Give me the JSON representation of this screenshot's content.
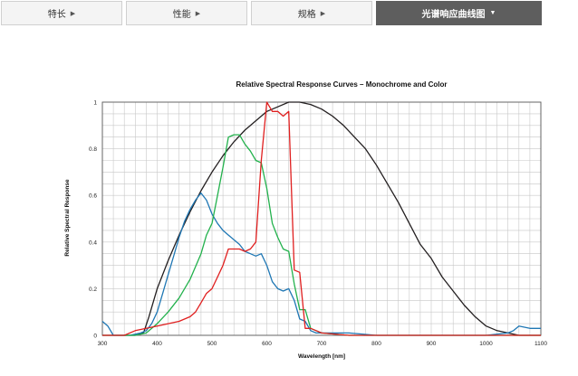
{
  "tabs": [
    {
      "label": "特长",
      "arrow": "▶",
      "active": false
    },
    {
      "label": "性能",
      "arrow": "▶",
      "active": false
    },
    {
      "label": "规格",
      "arrow": "▶",
      "active": false
    },
    {
      "label": "光谱响应曲线图",
      "arrow": "▼",
      "active": true
    }
  ],
  "chart_data": {
    "type": "line",
    "title": "Relative Spectral Response Curves – Monochrome and Color",
    "xlabel": "Wavelength [nm]",
    "ylabel": "Relative Spectral Response",
    "xlim": [
      300,
      1100
    ],
    "ylim": [
      0,
      1
    ],
    "xticks": [
      300,
      400,
      500,
      600,
      700,
      800,
      900,
      1000,
      1100
    ],
    "yticks": [
      0,
      0.2,
      0.4,
      0.6,
      0.8,
      1
    ],
    "ytick_labels": [
      "0",
      "0.2",
      "0.4",
      "0.6",
      "0.8",
      "1"
    ],
    "grid": true,
    "series": [
      {
        "color": "#231f20",
        "x": [
          300,
          320,
          340,
          360,
          375,
          385,
          400,
          420,
          440,
          460,
          480,
          500,
          520,
          540,
          560,
          580,
          600,
          620,
          640,
          660,
          680,
          700,
          720,
          740,
          760,
          780,
          800,
          820,
          840,
          860,
          880,
          900,
          920,
          940,
          960,
          980,
          1000,
          1020,
          1040,
          1060,
          1080,
          1100
        ],
        "y": [
          0,
          0,
          0,
          0,
          0.01,
          0.08,
          0.2,
          0.32,
          0.43,
          0.53,
          0.62,
          0.7,
          0.77,
          0.83,
          0.88,
          0.92,
          0.96,
          0.98,
          1,
          1,
          0.99,
          0.97,
          0.94,
          0.9,
          0.85,
          0.8,
          0.73,
          0.65,
          0.57,
          0.48,
          0.39,
          0.33,
          0.25,
          0.19,
          0.13,
          0.08,
          0.04,
          0.02,
          0.01,
          0,
          0,
          0
        ]
      },
      {
        "color": "#1f77b4",
        "x": [
          300,
          310,
          320,
          330,
          350,
          370,
          380,
          390,
          400,
          410,
          420,
          430,
          440,
          450,
          460,
          470,
          480,
          490,
          500,
          510,
          520,
          530,
          540,
          550,
          560,
          570,
          580,
          590,
          600,
          610,
          620,
          630,
          640,
          650,
          660,
          670,
          680,
          690,
          700,
          750,
          800,
          850,
          900,
          950,
          1000,
          1040,
          1050,
          1060,
          1080,
          1100
        ],
        "y": [
          0.06,
          0.04,
          0,
          0,
          0,
          0.01,
          0.02,
          0.05,
          0.1,
          0.18,
          0.26,
          0.34,
          0.42,
          0.49,
          0.54,
          0.58,
          0.61,
          0.58,
          0.52,
          0.48,
          0.45,
          0.43,
          0.41,
          0.39,
          0.36,
          0.35,
          0.34,
          0.35,
          0.3,
          0.23,
          0.2,
          0.19,
          0.2,
          0.15,
          0.07,
          0.06,
          0.02,
          0.01,
          0.01,
          0.01,
          0,
          0,
          0,
          0,
          0,
          0.01,
          0.02,
          0.04,
          0.03,
          0.03
        ]
      },
      {
        "color": "#22b14c",
        "x": [
          300,
          340,
          360,
          380,
          400,
          420,
          440,
          460,
          480,
          490,
          500,
          510,
          520,
          530,
          540,
          550,
          560,
          570,
          580,
          590,
          600,
          610,
          620,
          630,
          640,
          650,
          660,
          670,
          680,
          690,
          700,
          750,
          800,
          900,
          1000,
          1100
        ],
        "y": [
          0,
          0,
          0,
          0.01,
          0.05,
          0.1,
          0.16,
          0.24,
          0.35,
          0.43,
          0.48,
          0.6,
          0.72,
          0.85,
          0.86,
          0.86,
          0.82,
          0.79,
          0.75,
          0.74,
          0.63,
          0.48,
          0.42,
          0.37,
          0.36,
          0.22,
          0.11,
          0.11,
          0.03,
          0.02,
          0.01,
          0,
          0,
          0,
          0,
          0
        ]
      },
      {
        "color": "#e01f1f",
        "x": [
          300,
          340,
          360,
          380,
          400,
          420,
          440,
          460,
          470,
          480,
          490,
          500,
          510,
          520,
          530,
          540,
          550,
          560,
          570,
          580,
          590,
          600,
          610,
          620,
          630,
          640,
          650,
          660,
          670,
          680,
          690,
          700,
          750,
          800,
          900,
          1000,
          1100
        ],
        "y": [
          0,
          0,
          0.02,
          0.03,
          0.04,
          0.05,
          0.06,
          0.08,
          0.1,
          0.14,
          0.18,
          0.2,
          0.25,
          0.3,
          0.37,
          0.37,
          0.37,
          0.36,
          0.37,
          0.4,
          0.75,
          1,
          0.96,
          0.96,
          0.94,
          0.96,
          0.28,
          0.27,
          0.03,
          0.03,
          0.02,
          0.01,
          0,
          0,
          0,
          0,
          0
        ]
      }
    ]
  }
}
